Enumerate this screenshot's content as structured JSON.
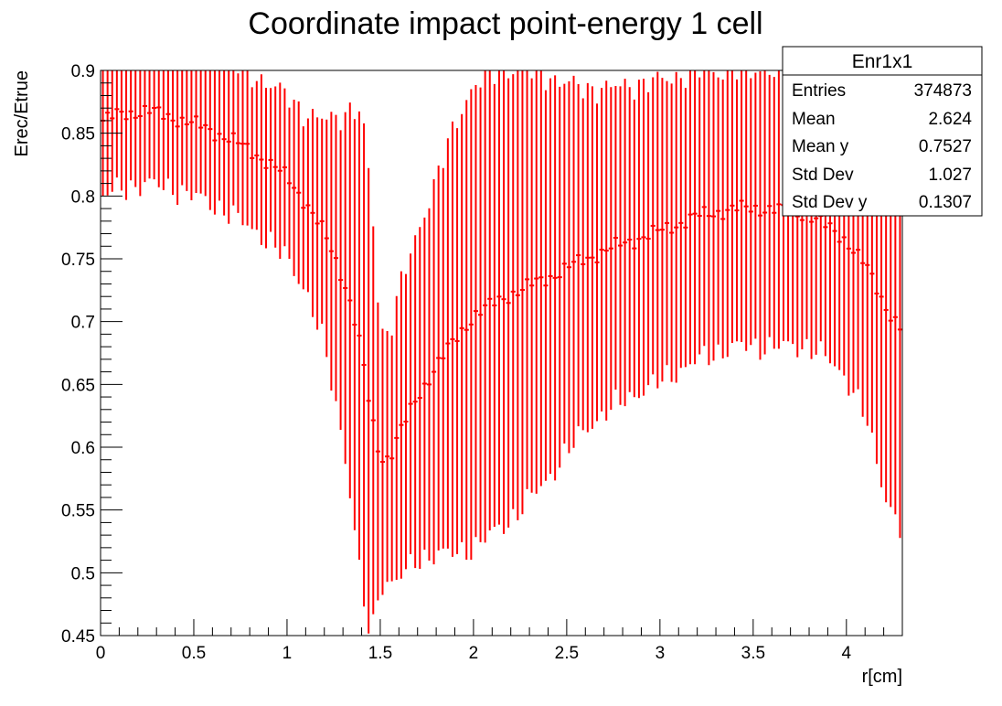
{
  "chart_data": {
    "type": "scatter",
    "title": "Coordinate impact point-energy 1 cell",
    "xlabel": "r[cm]",
    "ylabel": "Erec/Etrue",
    "xlim": [
      0,
      4.3
    ],
    "ylim": [
      0.45,
      0.9
    ],
    "x_major_ticks": [
      0,
      0.5,
      1,
      1.5,
      2,
      2.5,
      3,
      3.5,
      4
    ],
    "x_tick_labels": [
      "0",
      "0.5",
      "1",
      "1.5",
      "2",
      "2.5",
      "3",
      "3.5",
      "4"
    ],
    "y_major_ticks": [
      0.45,
      0.5,
      0.55,
      0.6,
      0.65,
      0.7,
      0.75,
      0.8,
      0.85,
      0.9
    ],
    "y_tick_labels": [
      "0.45",
      "0.5",
      "0.55",
      "0.6",
      "0.65",
      "0.7",
      "0.75",
      "0.8",
      "0.85",
      "0.9"
    ],
    "grid": false,
    "marker_color": "#ff0000",
    "bin_width": 0.025,
    "profile_anchors": {
      "x": [
        0.0125,
        0.1,
        0.25,
        0.4,
        0.55,
        0.7,
        0.85,
        1.0,
        1.1,
        1.2,
        1.3,
        1.35,
        1.4,
        1.45,
        1.5,
        1.55,
        1.6,
        1.7,
        1.8,
        1.9,
        2.0,
        2.2,
        2.4,
        2.6,
        2.8,
        3.0,
        3.2,
        3.4,
        3.6,
        3.8,
        3.9,
        4.0,
        4.1,
        4.2,
        4.2875
      ],
      "y": [
        0.86,
        0.865,
        0.868,
        0.862,
        0.855,
        0.845,
        0.832,
        0.815,
        0.795,
        0.77,
        0.735,
        0.71,
        0.675,
        0.625,
        0.592,
        0.592,
        0.61,
        0.64,
        0.665,
        0.685,
        0.705,
        0.722,
        0.735,
        0.75,
        0.762,
        0.772,
        0.784,
        0.79,
        0.79,
        0.785,
        0.775,
        0.765,
        0.745,
        0.715,
        0.695
      ],
      "err": [
        0.06,
        0.06,
        0.058,
        0.057,
        0.058,
        0.06,
        0.062,
        0.065,
        0.07,
        0.09,
        0.13,
        0.16,
        0.19,
        0.18,
        0.1,
        0.1,
        0.115,
        0.13,
        0.15,
        0.17,
        0.185,
        0.18,
        0.16,
        0.135,
        0.125,
        0.12,
        0.115,
        0.11,
        0.11,
        0.105,
        0.105,
        0.11,
        0.12,
        0.15,
        0.16
      ]
    }
  },
  "stats_box": {
    "title": "Enr1x1",
    "rows": [
      {
        "label": "Entries",
        "value": "374873"
      },
      {
        "label": "Mean",
        "value": "2.624"
      },
      {
        "label": "Mean y",
        "value": "0.7527"
      },
      {
        "label": "Std Dev",
        "value": "1.027"
      },
      {
        "label": "Std Dev y",
        "value": "0.1307"
      }
    ]
  }
}
